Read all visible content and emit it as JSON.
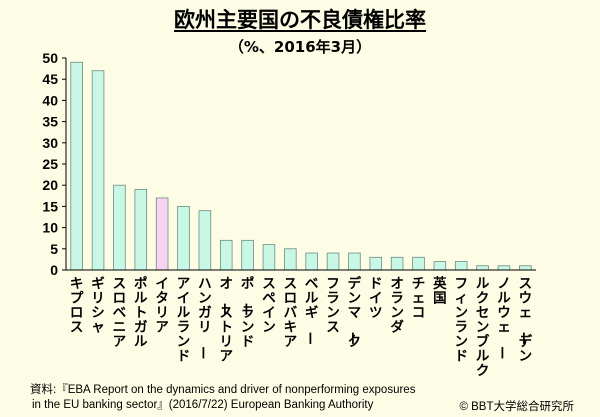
{
  "header": {
    "title": "欧州主要国の不良債権比率",
    "subtitle": "（%、2016年3月）"
  },
  "footer": {
    "source_line1": "資料:『EBA Report on the dynamics and driver of nonperforming exposures",
    "source_line2": "in the EU banking sector』(2016/7/22) European Banking Authority",
    "copyright": "© BBT大学総合研究所"
  },
  "chart_data": {
    "type": "bar",
    "title": "欧州主要国の不良債権比率",
    "subtitle": "（%、2016年3月）",
    "xlabel": "",
    "ylabel": "",
    "ylim": [
      0,
      50
    ],
    "yticks": [
      0,
      5,
      10,
      15,
      20,
      25,
      30,
      35,
      40,
      45,
      50
    ],
    "grid": false,
    "legend": "none",
    "colors": {
      "bar": "#c9f7e6",
      "highlight": "#f9d2f2",
      "bar_stroke": "#6e8c80",
      "axis": "#000000"
    },
    "highlight_index": 4,
    "categories": [
      "キプロス",
      "ギリシャ",
      "スロベニア",
      "ポルトガル",
      "イタリア",
      "アイルランド",
      "ハンガリー",
      "オーストリア",
      "ポーランド",
      "スペイン",
      "スロバキア",
      "ベルギー",
      "フランス",
      "デンマーク",
      "ドイツ",
      "オランダ",
      "チェコ",
      "英国",
      "フィンランド",
      "ルクセンブルク",
      "ノルウェー",
      "スウェーデン"
    ],
    "values": [
      49,
      47,
      20,
      19,
      17,
      15,
      14,
      7,
      7,
      6,
      5,
      4,
      4,
      4,
      3,
      3,
      3,
      2,
      2,
      1,
      1,
      1
    ]
  }
}
